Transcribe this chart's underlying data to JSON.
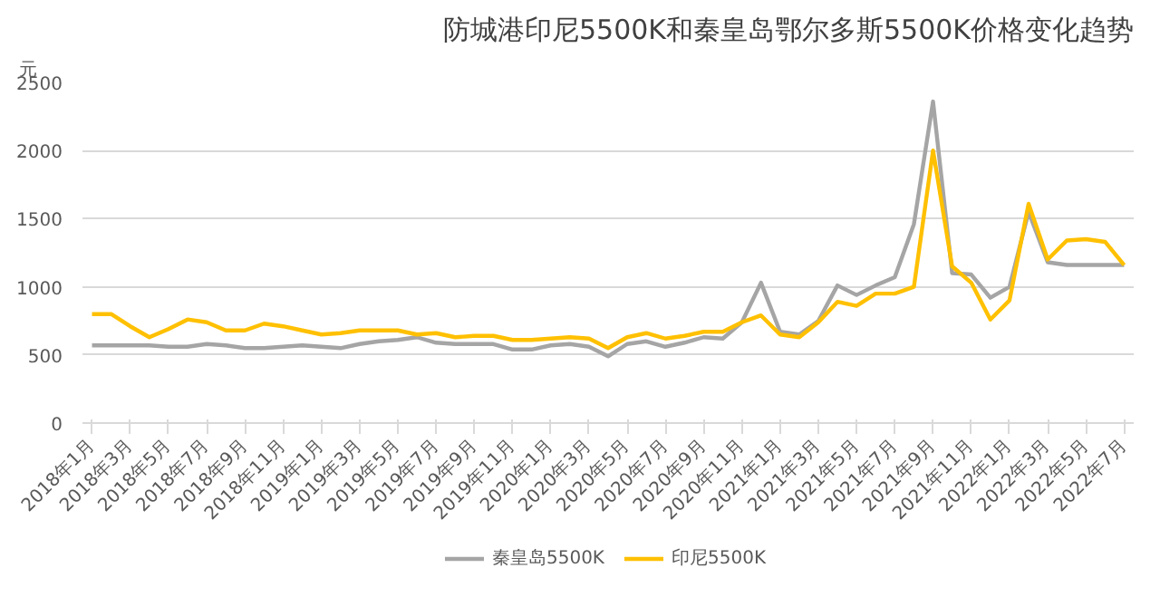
{
  "chart_data": {
    "type": "line",
    "title": "防城港印尼5500K和秦皇岛鄂尔多斯5500K价格变化趋势",
    "ylabel": "元",
    "categories": [
      "2018年1月",
      null,
      "2018年3月",
      null,
      "2018年5月",
      null,
      "2018年7月",
      null,
      "2018年9月",
      null,
      "2018年11月",
      null,
      "2019年1月",
      null,
      "2019年3月",
      null,
      "2019年5月",
      null,
      "2019年7月",
      null,
      "2019年9月",
      null,
      "2019年11月",
      null,
      "2020年1月",
      null,
      "2020年3月",
      null,
      "2020年5月",
      null,
      "2020年7月",
      null,
      "2020年9月",
      null,
      "2020年11月",
      null,
      "2021年1月",
      null,
      "2021年3月",
      null,
      "2021年5月",
      null,
      "2021年7月",
      null,
      "2021年9月",
      null,
      "2021年11月",
      null,
      "2022年1月",
      null,
      "2022年3月",
      null,
      "2022年5月",
      null,
      "2022年7月"
    ],
    "series": [
      {
        "name": "秦皇岛5500K",
        "color": "#a5a5a5",
        "values": [
          570,
          570,
          570,
          570,
          560,
          560,
          580,
          570,
          550,
          550,
          560,
          570,
          560,
          550,
          580,
          600,
          610,
          630,
          590,
          580,
          580,
          580,
          540,
          540,
          570,
          580,
          560,
          490,
          580,
          600,
          560,
          590,
          630,
          620,
          740,
          1030,
          670,
          650,
          750,
          1010,
          940,
          1010,
          1070,
          1460,
          2360,
          1100,
          1090,
          920,
          1000,
          1550,
          1180,
          1160,
          1160,
          1160,
          1160
        ]
      },
      {
        "name": "印尼5500K",
        "color": "#ffc000",
        "values": [
          800,
          800,
          710,
          630,
          690,
          760,
          740,
          680,
          680,
          730,
          710,
          680,
          650,
          660,
          680,
          680,
          680,
          650,
          660,
          630,
          640,
          640,
          610,
          610,
          620,
          630,
          620,
          550,
          630,
          660,
          620,
          640,
          670,
          670,
          740,
          790,
          650,
          630,
          740,
          890,
          860,
          950,
          950,
          1000,
          2000,
          1150,
          1030,
          760,
          900,
          1610,
          1200,
          1340,
          1350,
          1330,
          1160
        ]
      }
    ],
    "ylim": [
      0,
      2500
    ],
    "yticks": [
      0,
      500,
      1000,
      1500,
      2000,
      2500
    ],
    "grid": "y",
    "legend": "bottom",
    "marker": "none",
    "line_style": "solid"
  }
}
